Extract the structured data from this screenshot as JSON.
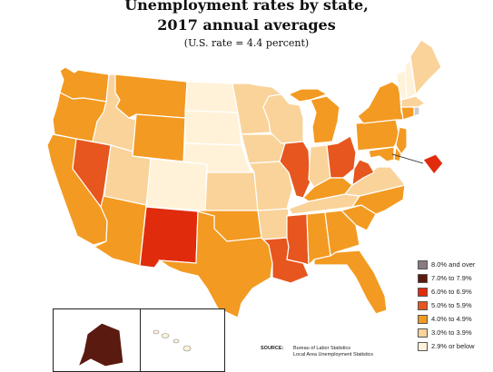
{
  "map": {
    "title_line1": "Unemployment rates by state,",
    "title_line2": "2017 annual averages",
    "subtitle": "(U.S. rate = 4.4 percent)",
    "colors": {
      "c8": "#8a7a84",
      "c7": "#5a1a10",
      "c6": "#e02c0c",
      "c5": "#e6561e",
      "c4": "#f39a22",
      "c3": "#f9d39a",
      "c2": "#fff2d8",
      "border": "#ffffff",
      "outline": "#888888"
    },
    "legend": [
      {
        "label": "8.0% and over",
        "color_key": "c8"
      },
      {
        "label": "7.0% to 7.9%",
        "color_key": "c7"
      },
      {
        "label": "6.0% to 6.9%",
        "color_key": "c6"
      },
      {
        "label": "5.0% to 5.9%",
        "color_key": "c5"
      },
      {
        "label": "4.0% to 4.9%",
        "color_key": "c4"
      },
      {
        "label": "3.0% to 3.9%",
        "color_key": "c3"
      },
      {
        "label": "2.9% or below",
        "color_key": "c2"
      }
    ],
    "source_label": "SOURCE:",
    "source_line1": "Bureau of Labor Statistics",
    "source_line2": "Local Area Unemployment Statistics",
    "states": [
      {
        "code": "WA",
        "class": "c4"
      },
      {
        "code": "OR",
        "class": "c4"
      },
      {
        "code": "CA",
        "class": "c4"
      },
      {
        "code": "NV",
        "class": "c5"
      },
      {
        "code": "ID",
        "class": "c3"
      },
      {
        "code": "MT",
        "class": "c4"
      },
      {
        "code": "WY",
        "class": "c4"
      },
      {
        "code": "UT",
        "class": "c3"
      },
      {
        "code": "AZ",
        "class": "c4"
      },
      {
        "code": "CO",
        "class": "c2"
      },
      {
        "code": "NM",
        "class": "c6"
      },
      {
        "code": "ND",
        "class": "c2"
      },
      {
        "code": "SD",
        "class": "c2"
      },
      {
        "code": "NE",
        "class": "c2"
      },
      {
        "code": "KS",
        "class": "c3"
      },
      {
        "code": "OK",
        "class": "c4"
      },
      {
        "code": "TX",
        "class": "c4"
      },
      {
        "code": "MN",
        "class": "c3"
      },
      {
        "code": "IA",
        "class": "c3"
      },
      {
        "code": "MO",
        "class": "c3"
      },
      {
        "code": "AR",
        "class": "c3"
      },
      {
        "code": "LA",
        "class": "c5"
      },
      {
        "code": "WI",
        "class": "c3"
      },
      {
        "code": "IL",
        "class": "c5"
      },
      {
        "code": "MI",
        "class": "c4"
      },
      {
        "code": "IN",
        "class": "c3"
      },
      {
        "code": "OH",
        "class": "c5"
      },
      {
        "code": "KY",
        "class": "c4"
      },
      {
        "code": "TN",
        "class": "c3"
      },
      {
        "code": "MS",
        "class": "c5"
      },
      {
        "code": "AL",
        "class": "c4"
      },
      {
        "code": "GA",
        "class": "c4"
      },
      {
        "code": "FL",
        "class": "c4"
      },
      {
        "code": "SC",
        "class": "c4"
      },
      {
        "code": "NC",
        "class": "c4"
      },
      {
        "code": "VA",
        "class": "c3"
      },
      {
        "code": "WV",
        "class": "c5"
      },
      {
        "code": "PA",
        "class": "c4"
      },
      {
        "code": "NY",
        "class": "c4"
      },
      {
        "code": "VT",
        "class": "c2"
      },
      {
        "code": "NH",
        "class": "c2"
      },
      {
        "code": "ME",
        "class": "c3"
      },
      {
        "code": "MA",
        "class": "c3"
      },
      {
        "code": "CT",
        "class": "c4"
      },
      {
        "code": "NJ",
        "class": "c4"
      },
      {
        "code": "DE",
        "class": "c4"
      },
      {
        "code": "MD",
        "class": "c4"
      },
      {
        "code": "DC",
        "class": "c6"
      },
      {
        "code": "AK",
        "class": "c7"
      },
      {
        "code": "HI",
        "class": "c2"
      }
    ]
  }
}
